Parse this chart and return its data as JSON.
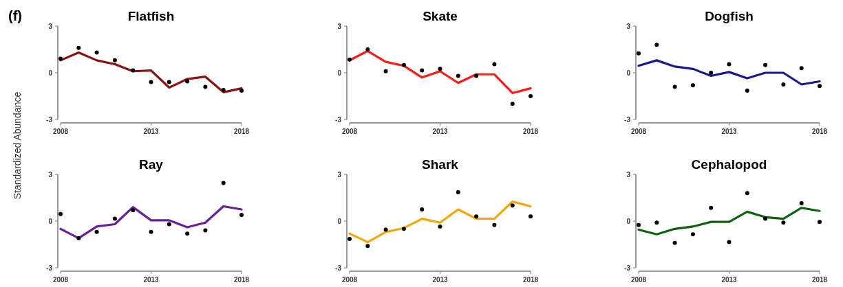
{
  "chart_data": [
    {
      "type": "line",
      "title": "Flatfish",
      "ylabel": "Standardized Abundance",
      "annotations": [
        "(f)"
      ],
      "x": [
        2008,
        2009,
        2010,
        2011,
        2012,
        2013,
        2014,
        2015,
        2016,
        2017,
        2018
      ],
      "xlim": [
        2008,
        2018
      ],
      "xticks": [
        2008,
        2013,
        2018
      ],
      "ylim": [
        -3,
        3
      ],
      "yticks": [
        -3,
        0,
        3
      ],
      "series": [
        {
          "type": "line",
          "color": "#8b1010",
          "values": [
            0.8,
            1.3,
            0.8,
            0.55,
            0.1,
            0.15,
            -0.95,
            -0.4,
            -0.25,
            -1.25,
            -1.0
          ]
        },
        {
          "type": "scatter",
          "color": "#000000",
          "marker": "circle",
          "values": [
            0.9,
            1.6,
            1.3,
            0.8,
            0.15,
            -0.6,
            -0.6,
            -0.55,
            -0.9,
            -1.1,
            -1.15
          ]
        }
      ]
    },
    {
      "type": "line",
      "title": "Skate",
      "x": [
        2008,
        2009,
        2010,
        2011,
        2012,
        2013,
        2014,
        2015,
        2016,
        2017,
        2018
      ],
      "xlim": [
        2008,
        2018
      ],
      "xticks": [
        2008,
        2013,
        2018
      ],
      "ylim": [
        -3,
        3
      ],
      "yticks": [
        -3,
        0,
        3
      ],
      "series": [
        {
          "type": "line",
          "color": "#ff1a1a",
          "values": [
            0.8,
            1.4,
            0.7,
            0.45,
            -0.3,
            0.1,
            -0.65,
            -0.1,
            -0.1,
            -1.3,
            -1.0
          ]
        },
        {
          "type": "scatter",
          "color": "#000000",
          "marker": "circle",
          "values": [
            0.85,
            1.5,
            0.1,
            0.5,
            0.15,
            0.25,
            -0.2,
            -0.2,
            0.55,
            -2.0,
            -1.5
          ]
        }
      ]
    },
    {
      "type": "line",
      "title": "Dogfish",
      "x": [
        2008,
        2009,
        2010,
        2011,
        2012,
        2013,
        2014,
        2015,
        2016,
        2017,
        2018
      ],
      "xlim": [
        2008,
        2018
      ],
      "xticks": [
        2008,
        2013,
        2018
      ],
      "ylim": [
        -3,
        3
      ],
      "yticks": [
        -3,
        0,
        3
      ],
      "series": [
        {
          "type": "line",
          "color": "#1a1a8c",
          "values": [
            0.45,
            0.8,
            0.4,
            0.25,
            -0.2,
            0.05,
            -0.35,
            0,
            0,
            -0.75,
            -0.55
          ]
        },
        {
          "type": "scatter",
          "color": "#000000",
          "marker": "circle",
          "values": [
            1.25,
            1.8,
            -0.9,
            -0.8,
            0,
            0.55,
            -1.15,
            0.5,
            -0.75,
            0.3,
            -0.85
          ]
        }
      ]
    },
    {
      "type": "line",
      "title": "Ray",
      "x": [
        2008,
        2009,
        2010,
        2011,
        2012,
        2013,
        2014,
        2015,
        2016,
        2017,
        2018
      ],
      "xlim": [
        2008,
        2018
      ],
      "xticks": [
        2008,
        2013,
        2018
      ],
      "ylim": [
        -3,
        3
      ],
      "yticks": [
        -3,
        0,
        3
      ],
      "series": [
        {
          "type": "line",
          "color": "#6a1f9a",
          "values": [
            -0.5,
            -1.1,
            -0.35,
            -0.2,
            0.9,
            0.05,
            0.05,
            -0.4,
            -0.1,
            0.95,
            0.75
          ]
        },
        {
          "type": "scatter",
          "color": "#000000",
          "marker": "circle",
          "values": [
            0.45,
            -1.1,
            -0.7,
            0.15,
            0.7,
            -0.7,
            -0.2,
            -0.8,
            -0.6,
            2.45,
            0.4
          ]
        }
      ]
    },
    {
      "type": "line",
      "title": "Shark",
      "x": [
        2008,
        2009,
        2010,
        2011,
        2012,
        2013,
        2014,
        2015,
        2016,
        2017,
        2018
      ],
      "xlim": [
        2008,
        2018
      ],
      "xticks": [
        2008,
        2013,
        2018
      ],
      "ylim": [
        -3,
        3
      ],
      "yticks": [
        -3,
        0,
        3
      ],
      "series": [
        {
          "type": "line",
          "color": "#f0a800",
          "values": [
            -0.8,
            -1.35,
            -0.7,
            -0.45,
            0.15,
            -0.1,
            0.75,
            0.15,
            0.15,
            1.25,
            0.95
          ]
        },
        {
          "type": "scatter",
          "color": "#000000",
          "marker": "circle",
          "values": [
            -1.15,
            -1.6,
            -0.55,
            -0.5,
            0.75,
            -0.35,
            1.85,
            0.3,
            -0.25,
            1.0,
            0.3
          ]
        }
      ]
    },
    {
      "type": "line",
      "title": "Cephalopod",
      "x": [
        2008,
        2009,
        2010,
        2011,
        2012,
        2013,
        2014,
        2015,
        2016,
        2017,
        2018
      ],
      "xlim": [
        2008,
        2018
      ],
      "xticks": [
        2008,
        2013,
        2018
      ],
      "ylim": [
        -3,
        3
      ],
      "yticks": [
        -3,
        0,
        3
      ],
      "series": [
        {
          "type": "line",
          "color": "#106010",
          "values": [
            -0.55,
            -0.85,
            -0.5,
            -0.35,
            -0.05,
            -0.05,
            0.6,
            0.25,
            0.15,
            0.85,
            0.65
          ]
        },
        {
          "type": "scatter",
          "color": "#000000",
          "marker": "circle",
          "values": [
            -0.25,
            -0.1,
            -1.4,
            -0.85,
            0.85,
            -1.35,
            1.8,
            0.15,
            -0.1,
            1.15,
            -0.05
          ]
        }
      ]
    }
  ]
}
